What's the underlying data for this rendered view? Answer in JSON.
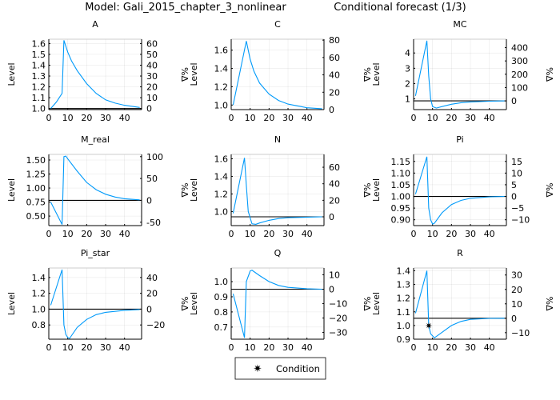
{
  "title_model": "Model: Gali_2015_chapter_3_nonlinear",
  "title_forecast": "Conditional forecast  (1/3)",
  "legend": {
    "label": "Condition",
    "marker": "star"
  },
  "colors": {
    "series": "#009AFA",
    "steady_state": "#000000"
  },
  "chart_data": [
    {
      "type": "line",
      "title": "A",
      "ylabel": "Level",
      "y2label": "%Δ",
      "xlim": [
        0,
        49
      ],
      "xticks": [
        0,
        10,
        20,
        30,
        40
      ],
      "ylim": [
        0.99,
        1.64
      ],
      "yticks": [
        1.0,
        1.1,
        1.2,
        1.3,
        1.4,
        1.5,
        1.6
      ],
      "ytick_labels": [
        "1.0",
        "1.1",
        "1.2",
        "1.3",
        "1.4",
        "1.5",
        "1.6"
      ],
      "y2ticks": [
        0,
        10,
        20,
        30,
        40,
        50,
        60
      ],
      "steady_state": 1.0,
      "x": [
        1,
        4,
        7,
        8,
        10,
        12,
        15,
        20,
        25,
        30,
        35,
        40,
        48
      ],
      "y": [
        1.0,
        1.06,
        1.14,
        1.63,
        1.52,
        1.44,
        1.35,
        1.23,
        1.14,
        1.08,
        1.05,
        1.03,
        1.01
      ]
    },
    {
      "type": "line",
      "title": "C",
      "ylabel": "Level",
      "y2label": "%Δ",
      "xlim": [
        0,
        49
      ],
      "xticks": [
        0,
        10,
        20,
        30,
        40
      ],
      "ylim": [
        0.95,
        1.72
      ],
      "yticks": [
        1.0,
        1.2,
        1.4,
        1.6
      ],
      "ytick_labels": [
        "1.0",
        "1.2",
        "1.4",
        "1.6"
      ],
      "y2ticks": [
        0,
        20,
        40,
        60,
        80
      ],
      "steady_state": 0.95,
      "x": [
        1,
        8,
        10,
        12,
        15,
        20,
        25,
        30,
        35,
        40,
        48
      ],
      "y": [
        1.0,
        1.7,
        1.5,
        1.37,
        1.24,
        1.12,
        1.05,
        1.01,
        0.99,
        0.97,
        0.96
      ]
    },
    {
      "type": "line",
      "title": "MC",
      "ylabel": "Level",
      "y2label": "%Δ",
      "xlim": [
        0,
        49
      ],
      "xticks": [
        0,
        10,
        20,
        30,
        40
      ],
      "ylim": [
        0.3,
        4.9
      ],
      "yticks": [
        1,
        2,
        3,
        4
      ],
      "ytick_labels": [
        "1",
        "2",
        "3",
        "4"
      ],
      "y2ticks": [
        0,
        100,
        200,
        300,
        400
      ],
      "steady_state": 0.87,
      "x": [
        1,
        7,
        8,
        9,
        10,
        12,
        15,
        20,
        25,
        30,
        40,
        48
      ],
      "y": [
        1.2,
        4.8,
        2.5,
        1.0,
        0.5,
        0.4,
        0.5,
        0.65,
        0.75,
        0.8,
        0.85,
        0.87
      ]
    },
    {
      "type": "line",
      "title": "M_real",
      "ylabel": "Level",
      "y2label": "%Δ",
      "xlim": [
        0,
        49
      ],
      "xticks": [
        0,
        10,
        20,
        30,
        40
      ],
      "ylim": [
        0.33,
        1.6
      ],
      "yticks": [
        0.5,
        0.75,
        1.0,
        1.25,
        1.5
      ],
      "ytick_labels": [
        "0.50",
        "0.75",
        "1.00",
        "1.25",
        "1.50"
      ],
      "y2ticks": [
        -50,
        0,
        50,
        100
      ],
      "steady_state": 0.78,
      "x": [
        1,
        7,
        8,
        9,
        10,
        15,
        20,
        25,
        30,
        35,
        40,
        48
      ],
      "y": [
        0.75,
        0.35,
        1.56,
        1.57,
        1.52,
        1.3,
        1.1,
        0.97,
        0.89,
        0.84,
        0.81,
        0.79
      ]
    },
    {
      "type": "line",
      "title": "N",
      "ylabel": "Level",
      "y2label": "%Δ",
      "xlim": [
        0,
        49
      ],
      "xticks": [
        0,
        10,
        20,
        30,
        40
      ],
      "ylim": [
        0.84,
        1.65
      ],
      "yticks": [
        1.0,
        1.2,
        1.4,
        1.6
      ],
      "ytick_labels": [
        "1.0",
        "1.2",
        "1.4",
        "1.6"
      ],
      "y2ticks": [
        0,
        20,
        40,
        60
      ],
      "steady_state": 0.94,
      "x": [
        1,
        7,
        8,
        9,
        11,
        13,
        15,
        20,
        25,
        30,
        48
      ],
      "y": [
        0.98,
        1.61,
        1.3,
        1.0,
        0.86,
        0.855,
        0.87,
        0.9,
        0.92,
        0.93,
        0.94
      ]
    },
    {
      "type": "line",
      "title": "Pi",
      "ylabel": "Level",
      "y2label": "%Δ",
      "xlim": [
        0,
        49
      ],
      "xticks": [
        0,
        10,
        20,
        30,
        40
      ],
      "ylim": [
        0.875,
        1.18
      ],
      "yticks": [
        0.9,
        0.95,
        1.0,
        1.05,
        1.1,
        1.15
      ],
      "ytick_labels": [
        "0.90",
        "0.95",
        "1.00",
        "1.05",
        "1.10",
        "1.15"
      ],
      "y2ticks": [
        -10,
        -5,
        0,
        5,
        10,
        15
      ],
      "y2tick_labels": [
        "−10",
        "−5",
        "0",
        "5",
        "10",
        "15"
      ],
      "steady_state": 1.0,
      "x": [
        1,
        7,
        8,
        9,
        10,
        11,
        15,
        20,
        25,
        30,
        40,
        48
      ],
      "y": [
        1.01,
        1.17,
        0.95,
        0.9,
        0.882,
        0.885,
        0.93,
        0.965,
        0.983,
        0.992,
        0.998,
        1.0
      ]
    },
    {
      "type": "line",
      "title": "Pi_star",
      "ylabel": "Level",
      "y2label": "%Δ",
      "xlim": [
        0,
        49
      ],
      "xticks": [
        0,
        10,
        20,
        30,
        40
      ],
      "ylim": [
        0.62,
        1.52
      ],
      "yticks": [
        0.8,
        1.0,
        1.2,
        1.4
      ],
      "ytick_labels": [
        "0.8",
        "1.0",
        "1.2",
        "1.4"
      ],
      "y2ticks": [
        -20,
        0,
        20,
        40
      ],
      "y2tick_labels": [
        "−20",
        "0",
        "20",
        "40"
      ],
      "steady_state": 1.0,
      "x": [
        1,
        7,
        8,
        9,
        10,
        11,
        15,
        20,
        25,
        30,
        40,
        48
      ],
      "y": [
        1.05,
        1.5,
        0.8,
        0.68,
        0.64,
        0.63,
        0.77,
        0.87,
        0.93,
        0.96,
        0.985,
        0.995
      ]
    },
    {
      "type": "line",
      "title": "Q",
      "ylabel": "Level",
      "y2label": "%Δ",
      "xlim": [
        0,
        49
      ],
      "xticks": [
        0,
        10,
        20,
        30,
        40
      ],
      "ylim": [
        0.62,
        1.09
      ],
      "yticks": [
        0.7,
        0.8,
        0.9,
        1.0
      ],
      "ytick_labels": [
        "0.7",
        "0.8",
        "0.9",
        "1.0"
      ],
      "y2ticks": [
        -30,
        -20,
        -10,
        0,
        10
      ],
      "y2tick_labels": [
        "−30",
        "−20",
        "−10",
        "0",
        "10"
      ],
      "steady_state": 0.95,
      "x": [
        1,
        7,
        8,
        10,
        11,
        15,
        20,
        25,
        30,
        40,
        48
      ],
      "y": [
        0.92,
        0.63,
        1.0,
        1.07,
        1.075,
        1.04,
        1.0,
        0.975,
        0.962,
        0.953,
        0.95
      ]
    },
    {
      "type": "line",
      "title": "R",
      "ylabel": "Level",
      "y2label": "%Δ",
      "xlim": [
        0,
        49
      ],
      "xticks": [
        0,
        10,
        20,
        30,
        40
      ],
      "ylim": [
        0.9,
        1.42
      ],
      "yticks": [
        0.9,
        1.0,
        1.1,
        1.2,
        1.3,
        1.4
      ],
      "ytick_labels": [
        "0.9",
        "1.0",
        "1.1",
        "1.2",
        "1.3",
        "1.4"
      ],
      "y2ticks": [
        -10,
        0,
        10,
        20,
        30
      ],
      "y2tick_labels": [
        "−10",
        "0",
        "10",
        "20",
        "30"
      ],
      "steady_state": 1.053,
      "x": [
        1,
        7,
        8,
        9,
        11,
        15,
        20,
        25,
        30,
        40,
        48
      ],
      "y": [
        1.09,
        1.4,
        1.0,
        0.94,
        0.91,
        0.95,
        1.0,
        1.03,
        1.045,
        1.052,
        1.053
      ],
      "condition": {
        "x": 8,
        "y": 1.0
      }
    }
  ]
}
